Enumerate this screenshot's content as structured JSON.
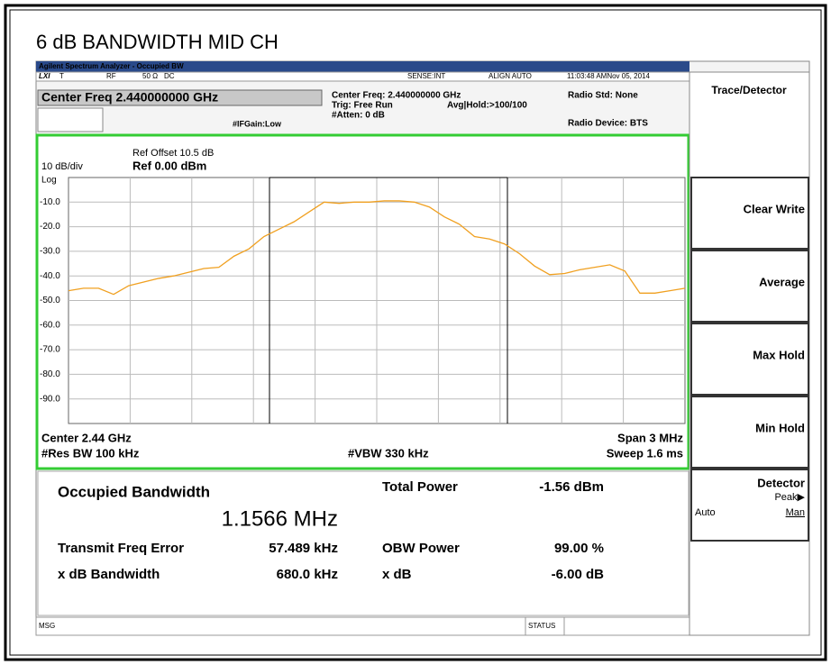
{
  "title": "6 dB BANDWIDTH MID CH",
  "window_title": "Agilent Spectrum Analyzer - Occupied BW",
  "status": {
    "lxi": "LXI",
    "t": "T",
    "rf": "RF",
    "impedance": "50 Ω",
    "coupling": "DC",
    "sense": "SENSE:INT",
    "align": "ALIGN AUTO",
    "time": "11:03:48 AMNov 05, 2014"
  },
  "center_freq_box": "Center Freq 2.440000000 GHz",
  "settings": {
    "center_freq": "Center Freq: 2.440000000 GHz",
    "trig": "Trig: Free Run",
    "avg_hold": "Avg|Hold:>100/100",
    "atten": "#Atten: 0 dB",
    "if_gain": "#IFGain:Low",
    "radio_std": "Radio Std: None",
    "radio_device": "Radio Device: BTS"
  },
  "chart_data": {
    "type": "line",
    "ref_offset": "Ref Offset 10.5 dB",
    "scale": "10 dB/div",
    "ref_level": "Ref 0.00 dBm",
    "scale_type": "Log",
    "ylim": [
      -100,
      0
    ],
    "yticks": [
      {
        "value": -10,
        "label": "-10.0"
      },
      {
        "value": -20,
        "label": "-20.0"
      },
      {
        "value": -30,
        "label": "-30.0"
      },
      {
        "value": -40,
        "label": "-40.0"
      },
      {
        "value": -50,
        "label": "-50.0"
      },
      {
        "value": -60,
        "label": "-60.0"
      },
      {
        "value": -70,
        "label": "-70.0"
      },
      {
        "value": -80,
        "label": "-80.0"
      },
      {
        "value": -90,
        "label": "-90.0"
      }
    ],
    "grid": true,
    "color": "#f0a020",
    "values": [
      -46,
      -45,
      -45,
      -47.5,
      -44,
      -42.5,
      -41,
      -40,
      -38.5,
      -37,
      -36.5,
      -32,
      -29,
      -24,
      -21,
      -18,
      -14,
      -10,
      -10.5,
      -10,
      -10,
      -9.5,
      -9.5,
      -10,
      -12,
      -16,
      -19,
      -24,
      -25,
      -27,
      -31,
      -36,
      -39.5,
      -39,
      -37.5,
      -36.5,
      -35.5,
      -38,
      -47,
      -47,
      -46,
      -45
    ],
    "center": "Center 2.44 GHz",
    "span": "Span 3 MHz",
    "res_bw": "#Res BW 100 kHz",
    "vbw": "#VBW 330 kHz",
    "sweep": "Sweep 1.6 ms"
  },
  "results": {
    "occupied_bandwidth": "Occupied Bandwidth",
    "occupied_bandwidth_value": "1.1566 MHz",
    "total_power": "Total Power",
    "total_power_value": "-1.56 dBm",
    "transmit_freq_error": "Transmit Freq Error",
    "transmit_freq_error_value": "57.489 kHz",
    "obw_power": "OBW Power",
    "obw_power_value": "99.00 %",
    "xdb_bandwidth": "x dB Bandwidth",
    "xdb_bandwidth_value": "680.0 kHz",
    "xdb": "x dB",
    "xdb_value": "-6.00 dB"
  },
  "menu": {
    "title": "Trace/Detector",
    "buttons": [
      "Clear Write",
      "Average",
      "Max Hold",
      "Min Hold"
    ],
    "detector": "Detector",
    "detector_value": "Peak▶",
    "auto": "Auto",
    "man": "Man"
  },
  "statusbar": {
    "msg": "MSG",
    "status": "STATUS"
  }
}
